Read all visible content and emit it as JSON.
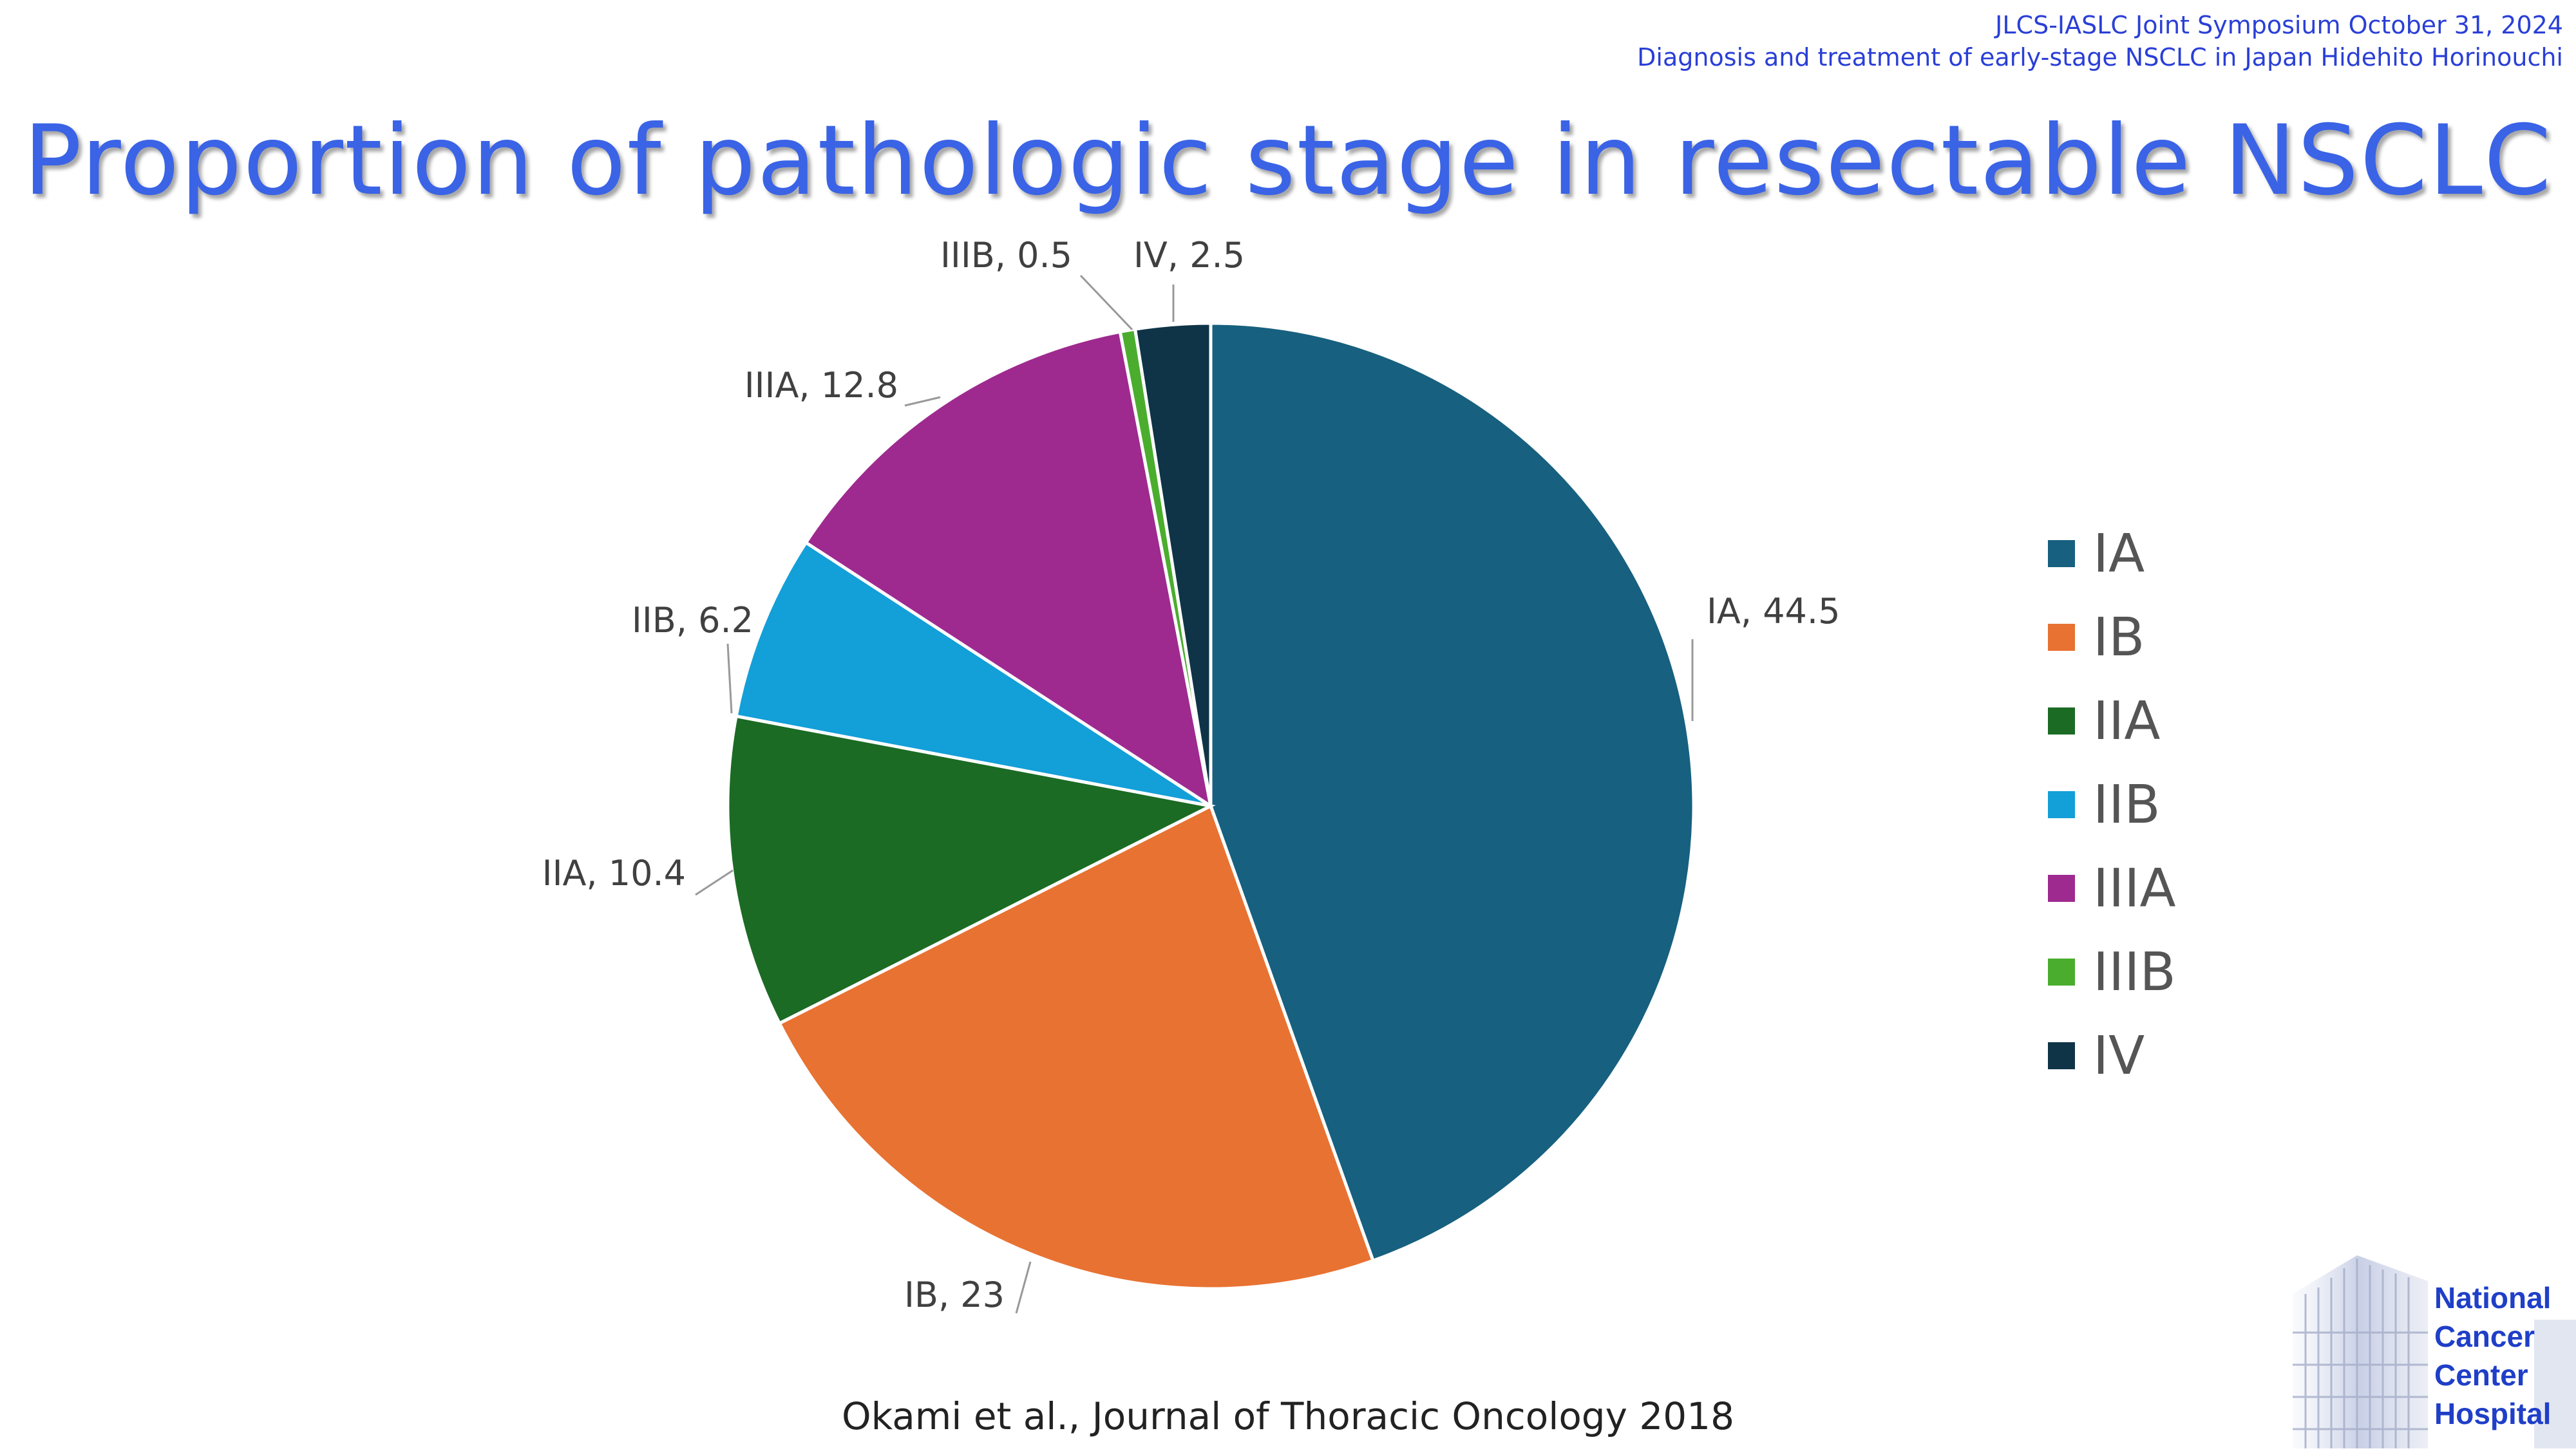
{
  "header": {
    "line1": "JLCS-IASLC Joint Symposium October 31, 2024",
    "line2": "Diagnosis and treatment of early-stage NSCLC in Japan Hidehito Horinouchi"
  },
  "title": "Proportion of pathologic stage in resectable NSCLC",
  "citation": "Okami et al., Journal of Thoracic Oncology 2018",
  "logo": {
    "lines": [
      "National",
      "Cancer",
      "Center",
      "Hospital"
    ],
    "color": "#1f3fc8"
  },
  "chart_data": {
    "type": "pie",
    "title": "",
    "legend_position": "right",
    "slices": [
      {
        "label": "IA",
        "value": 44.5,
        "data_label": "IA, 44.5",
        "color": "#17607f"
      },
      {
        "label": "IB",
        "value": 23,
        "data_label": "IB, 23",
        "color": "#e87232"
      },
      {
        "label": "IIA",
        "value": 10.4,
        "data_label": "IIA, 10.4",
        "color": "#1b6b24"
      },
      {
        "label": "IIB",
        "value": 6.2,
        "data_label": "IIB, 6.2",
        "color": "#139fd8"
      },
      {
        "label": "IIIA",
        "value": 12.8,
        "data_label": "IIIA, 12.8",
        "color": "#9e2a8f"
      },
      {
        "label": "IIIB",
        "value": 0.5,
        "data_label": "IIIB, 0.5",
        "color": "#4aad2e"
      },
      {
        "label": "IV",
        "value": 2.5,
        "data_label": "IV, 2.5",
        "color": "#0f3447"
      }
    ]
  }
}
